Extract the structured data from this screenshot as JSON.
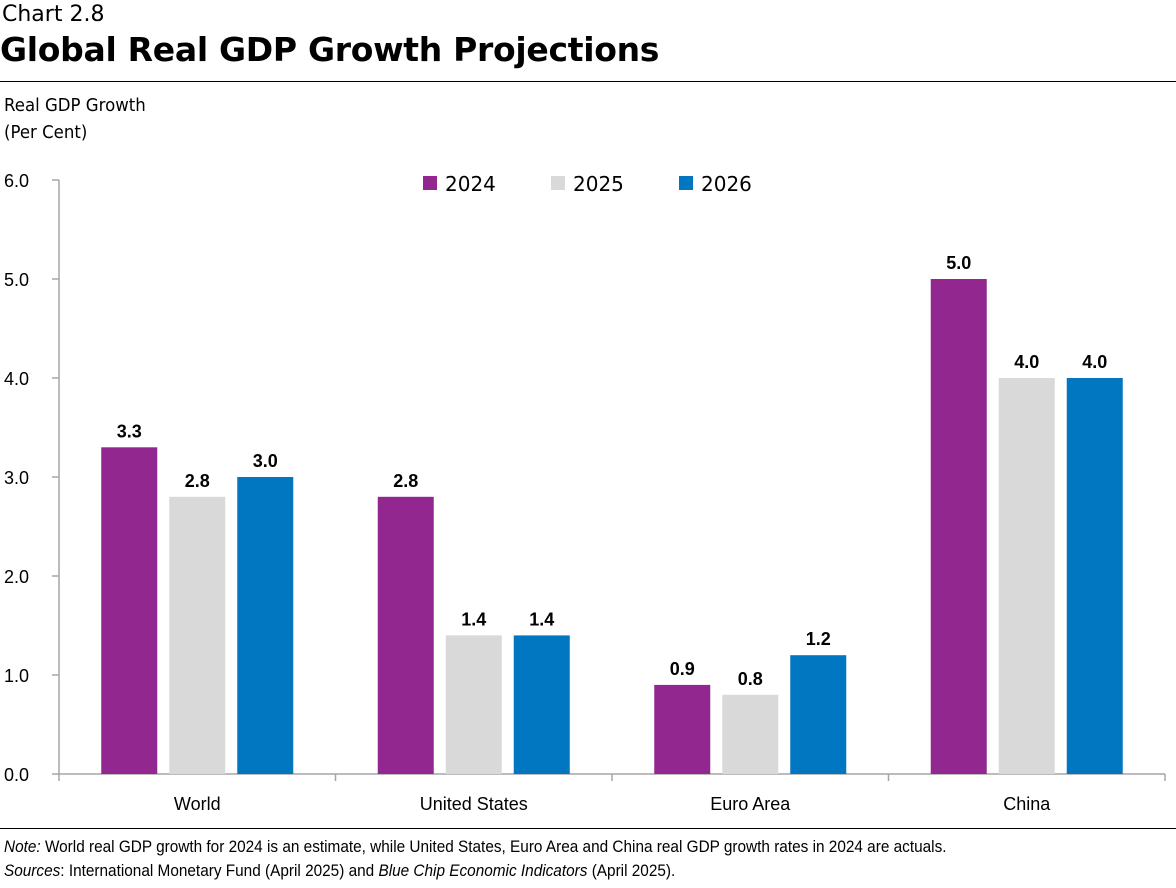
{
  "header": {
    "chart_number": "Chart 2.8",
    "title": "Global Real GDP Growth Projections"
  },
  "chart_data": {
    "type": "bar",
    "title": "Global Real GDP Growth Projections",
    "ylabel_line1": "Real GDP Growth",
    "ylabel_line2": "(Per Cent)",
    "xlabel": "",
    "categories": [
      "World",
      "United States",
      "Euro Area",
      "China"
    ],
    "series": [
      {
        "name": "2024",
        "color": "#92278F",
        "values": [
          3.3,
          2.8,
          0.9,
          5.0
        ]
      },
      {
        "name": "2025",
        "color": "#D9D9D9",
        "values": [
          2.8,
          1.4,
          0.8,
          4.0
        ]
      },
      {
        "name": "2026",
        "color": "#0077C0",
        "values": [
          3.0,
          1.4,
          1.2,
          4.0
        ]
      }
    ],
    "ylim": [
      0,
      6
    ],
    "yticks": [
      "0.0",
      "1.0",
      "2.0",
      "3.0",
      "4.0",
      "5.0",
      "6.0"
    ],
    "grid": false,
    "legend_position": "top-center",
    "data_labels": true
  },
  "footer": {
    "note_label": "Note:",
    "note_text": " World real GDP growth for 2024 is an estimate, while United States, Euro Area and China real GDP growth rates in 2024 are actuals.",
    "sources_label": "Sources",
    "sources_text_1": ": International Monetary Fund (April 2025) and ",
    "sources_italic": "Blue Chip Economic Indicators",
    "sources_text_2": " (April 2025)."
  }
}
